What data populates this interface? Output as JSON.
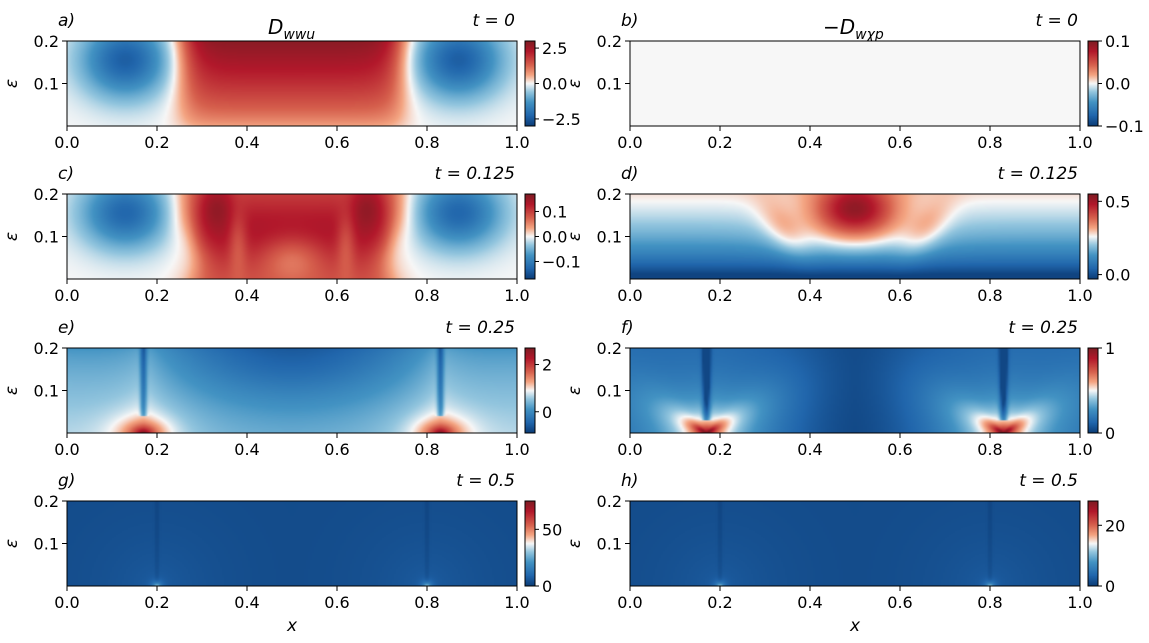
{
  "figure": {
    "columns": [
      {
        "title": "D",
        "title_sub": "wwu"
      },
      {
        "title": "−D",
        "title_sub": "wχp"
      }
    ]
  },
  "colors": {
    "cmap_low": "#0c3d78",
    "cmap_mid": "#f7f7f7",
    "cmap_high": "#7f1c23"
  },
  "chart_data": [
    {
      "type": "heatmap",
      "label": "a)",
      "time": "t = 0",
      "xlim": [
        0.0,
        1.0
      ],
      "ylim": [
        0.0,
        0.2
      ],
      "x_ticks": [
        "0.0",
        "0.2",
        "0.4",
        "0.6",
        "0.8",
        "1.0"
      ],
      "y_ticks": [
        "0.1",
        "0.2"
      ],
      "ylabel": "ε",
      "xlabel": "",
      "colorbar": {
        "range": [
          -3.0,
          3.0
        ],
        "ticks": [
          2.5,
          0.0,
          -2.5
        ],
        "tick_labels": [
          "2.5",
          "0.0",
          "−2.5"
        ]
      },
      "field": "t0a"
    },
    {
      "type": "heatmap",
      "label": "b)",
      "time": "t = 0",
      "xlim": [
        0.0,
        1.0
      ],
      "ylim": [
        0.0,
        0.2
      ],
      "x_ticks": [
        "0.0",
        "0.2",
        "0.4",
        "0.6",
        "0.8",
        "1.0"
      ],
      "y_ticks": [
        "0.1",
        "0.2"
      ],
      "ylabel": "ε",
      "xlabel": "",
      "colorbar": {
        "range": [
          -0.1,
          0.1
        ],
        "ticks": [
          0.1,
          0.0,
          -0.1
        ],
        "tick_labels": [
          "0.1",
          "0.0",
          "−0.1"
        ]
      },
      "field": "zero"
    },
    {
      "type": "heatmap",
      "label": "c)",
      "time": "t = 0.125",
      "xlim": [
        0.0,
        1.0
      ],
      "ylim": [
        0.0,
        0.2
      ],
      "x_ticks": [
        "0.0",
        "0.2",
        "0.4",
        "0.6",
        "0.8",
        "1.0"
      ],
      "y_ticks": [
        "0.1",
        "0.2"
      ],
      "ylabel": "ε",
      "xlabel": "",
      "colorbar": {
        "range": [
          -0.17,
          0.17
        ],
        "ticks": [
          0.1,
          0.0,
          -0.1
        ],
        "tick_labels": [
          "0.1",
          "0.0",
          "−0.1"
        ]
      },
      "field": "t125a"
    },
    {
      "type": "heatmap",
      "label": "d)",
      "time": "t = 0.125",
      "xlim": [
        0.0,
        1.0
      ],
      "ylim": [
        0.0,
        0.2
      ],
      "x_ticks": [
        "0.0",
        "0.2",
        "0.4",
        "0.6",
        "0.8",
        "1.0"
      ],
      "y_ticks": [
        "0.1",
        "0.2"
      ],
      "ylabel": "ε",
      "xlabel": "",
      "colorbar": {
        "range": [
          -0.03,
          0.55
        ],
        "ticks": [
          0.5,
          0.0
        ],
        "tick_labels": [
          "0.5",
          "0.0"
        ]
      },
      "field": "t125b"
    },
    {
      "type": "heatmap",
      "label": "e)",
      "time": "t = 0.25",
      "xlim": [
        0.0,
        1.0
      ],
      "ylim": [
        0.0,
        0.2
      ],
      "x_ticks": [
        "0.0",
        "0.2",
        "0.4",
        "0.6",
        "0.8",
        "1.0"
      ],
      "y_ticks": [
        "0.1",
        "0.2"
      ],
      "ylabel": "ε",
      "xlabel": "",
      "colorbar": {
        "range": [
          -0.9,
          2.7
        ],
        "ticks": [
          2,
          0
        ],
        "tick_labels": [
          "2",
          "0"
        ]
      },
      "field": "t25a"
    },
    {
      "type": "heatmap",
      "label": "f)",
      "time": "t = 0.25",
      "xlim": [
        0.0,
        1.0
      ],
      "ylim": [
        0.0,
        0.2
      ],
      "x_ticks": [
        "0.0",
        "0.2",
        "0.4",
        "0.6",
        "0.8",
        "1.0"
      ],
      "y_ticks": [
        "0.1",
        "0.2"
      ],
      "ylabel": "ε",
      "xlabel": "",
      "colorbar": {
        "range": [
          0.0,
          1.0
        ],
        "ticks": [
          1,
          0
        ],
        "tick_labels": [
          "1",
          "0"
        ]
      },
      "field": "t25b"
    },
    {
      "type": "heatmap",
      "label": "g)",
      "time": "t = 0.5",
      "xlim": [
        0.0,
        1.0
      ],
      "ylim": [
        0.0,
        0.2
      ],
      "x_ticks": [
        "0.0",
        "0.2",
        "0.4",
        "0.6",
        "0.8",
        "1.0"
      ],
      "y_ticks": [
        "0.1",
        "0.2"
      ],
      "ylabel": "ε",
      "xlabel": "x",
      "colorbar": {
        "range": [
          0,
          75
        ],
        "ticks": [
          50,
          0
        ],
        "tick_labels": [
          "50",
          "0"
        ]
      },
      "field": "t5"
    },
    {
      "type": "heatmap",
      "label": "h)",
      "time": "t = 0.5",
      "xlim": [
        0.0,
        1.0
      ],
      "ylim": [
        0.0,
        0.2
      ],
      "x_ticks": [
        "0.0",
        "0.2",
        "0.4",
        "0.6",
        "0.8",
        "1.0"
      ],
      "y_ticks": [
        "0.1",
        "0.2"
      ],
      "ylabel": "ε",
      "xlabel": "x",
      "colorbar": {
        "range": [
          0,
          28
        ],
        "ticks": [
          20,
          0
        ],
        "tick_labels": [
          "20",
          "0"
        ]
      },
      "field": "t5"
    }
  ]
}
